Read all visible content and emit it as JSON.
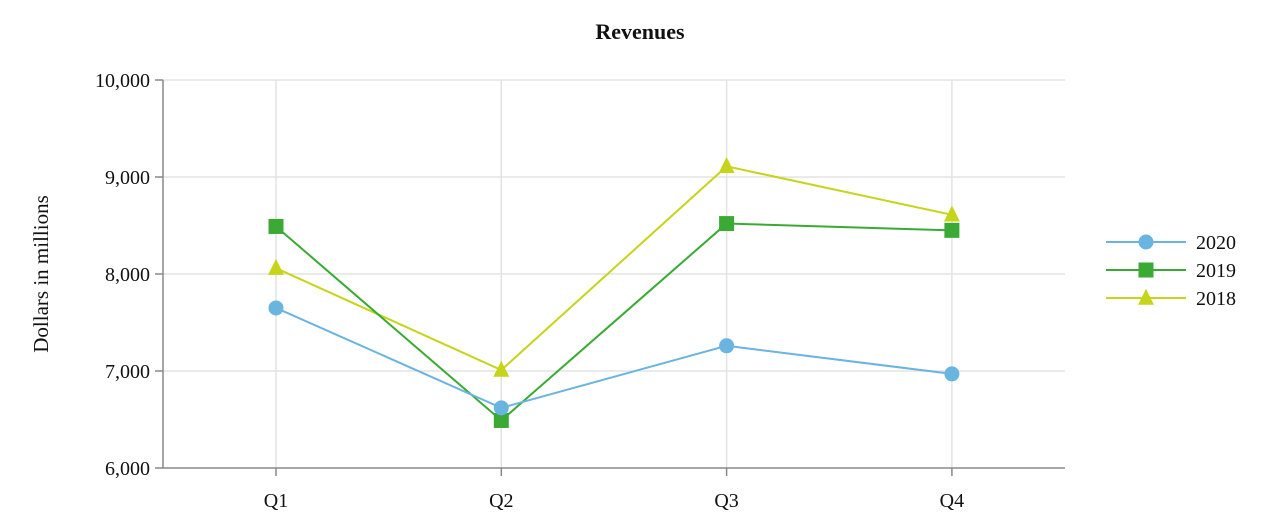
{
  "chart_data": {
    "type": "line",
    "title": "Revenues",
    "xlabel": "",
    "ylabel": "Dollars in millions",
    "categories": [
      "Q1",
      "Q2",
      "Q3",
      "Q4"
    ],
    "ylim": [
      6000,
      10000
    ],
    "yticks": [
      6000,
      7000,
      8000,
      9000,
      10000
    ],
    "ytick_labels": [
      "6,000",
      "7,000",
      "8,000",
      "9,000",
      "10,000"
    ],
    "grid": true,
    "legend_position": "right",
    "series": [
      {
        "name": "2020",
        "values": [
          7650,
          6620,
          7260,
          6970
        ],
        "color": "#6ab4e0",
        "marker": "circle"
      },
      {
        "name": "2019",
        "values": [
          8490,
          6490,
          8520,
          8450
        ],
        "color": "#3aaa35",
        "marker": "square"
      },
      {
        "name": "2018",
        "values": [
          8060,
          7010,
          9110,
          8610
        ],
        "color": "#c6d41a",
        "marker": "triangle"
      }
    ]
  }
}
